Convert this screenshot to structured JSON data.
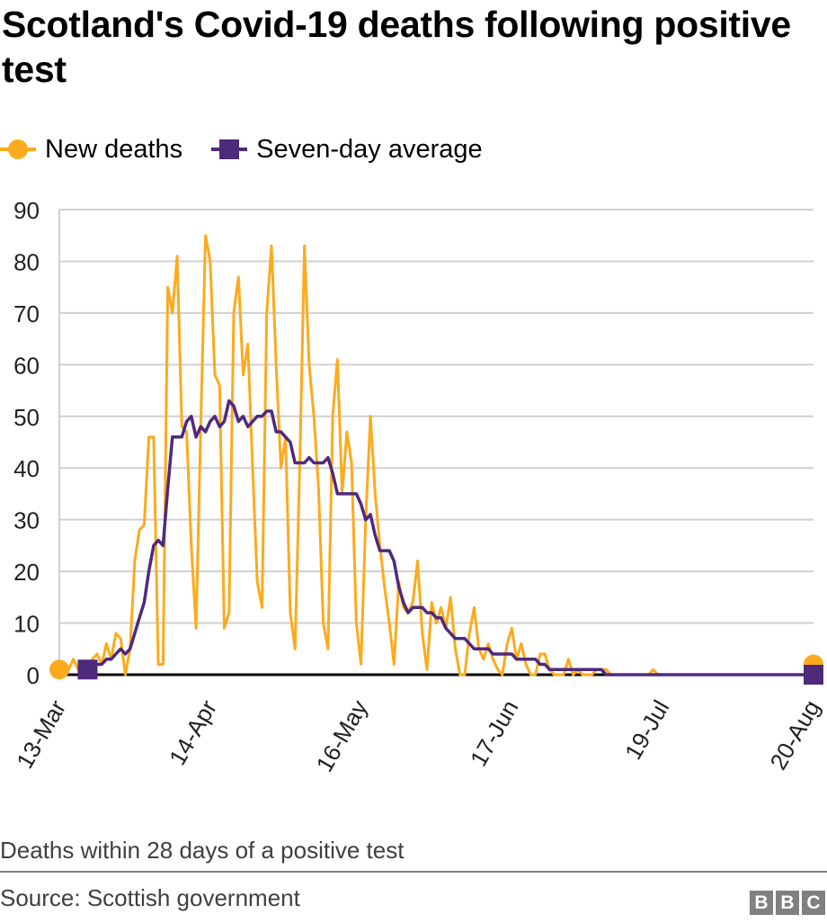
{
  "title": "Scotland's Covid-19 deaths following positive test",
  "subtitle": "Deaths within 28 days of a positive test",
  "source": "Source: Scottish government",
  "logo": [
    "B",
    "B",
    "C"
  ],
  "colors": {
    "new_deaths": "#fdaa1d",
    "average": "#4e2a7c",
    "grid": "#d0d0d0",
    "axis": "#000000"
  },
  "legend": [
    {
      "label": "New deaths",
      "icon": "circle-marker-icon"
    },
    {
      "label": "Seven-day average",
      "icon": "square-marker-icon"
    }
  ],
  "chart_data": {
    "type": "line",
    "title": "Scotland's Covid-19 deaths following positive test",
    "xlabel": "",
    "ylabel": "",
    "x_start": "13-Mar",
    "x_end": "20-Aug",
    "x_tick_labels": [
      "13-Mar",
      "14-Apr",
      "16-May",
      "17-Jun",
      "19-Jul",
      "20-Aug"
    ],
    "x_tick_days": [
      0,
      32,
      64,
      96,
      128,
      160
    ],
    "y_ticks": [
      0,
      10,
      20,
      30,
      40,
      50,
      60,
      70,
      80,
      90
    ],
    "ylim": [
      0,
      90
    ],
    "grid": true,
    "legend_position": "top-left",
    "series": [
      {
        "name": "New deaths",
        "marker": "circle",
        "values": [
          1,
          0,
          1,
          3,
          1,
          2,
          1,
          3,
          4,
          2,
          6,
          3,
          8,
          7,
          0,
          5,
          22,
          28,
          29,
          46,
          46,
          2,
          2,
          75,
          70,
          81,
          48,
          47,
          25,
          9,
          48,
          85,
          80,
          58,
          56,
          9,
          12,
          70,
          77,
          58,
          64,
          40,
          18,
          13,
          70,
          83,
          60,
          40,
          46,
          12,
          5,
          40,
          83,
          60,
          50,
          36,
          10,
          5,
          50,
          61,
          35,
          47,
          41,
          10,
          2,
          30,
          50,
          35,
          25,
          17,
          10,
          2,
          18,
          13,
          12,
          14,
          22,
          8,
          1,
          14,
          10,
          13,
          9,
          15,
          5,
          0,
          0,
          8,
          13,
          5,
          3,
          6,
          3,
          1,
          0,
          6,
          9,
          3,
          6,
          2,
          0,
          0,
          4,
          4,
          1,
          0,
          0,
          0,
          3,
          0,
          1,
          0,
          0,
          0,
          1,
          1,
          1,
          0,
          0,
          0,
          0,
          0,
          0,
          0,
          0,
          0,
          1,
          0,
          0,
          0,
          0,
          0,
          0,
          0,
          0,
          0,
          0,
          0,
          0,
          0,
          0,
          0,
          0,
          0,
          0,
          0,
          0,
          0,
          0,
          0,
          0,
          0,
          0,
          0,
          0,
          0,
          0,
          0,
          0,
          0,
          2
        ]
      },
      {
        "name": "Seven-day average",
        "marker": "square",
        "values": [
          null,
          null,
          null,
          null,
          null,
          null,
          1,
          1,
          2,
          2,
          3,
          3,
          4,
          5,
          4,
          5,
          8,
          11,
          14,
          20,
          25,
          26,
          25,
          36,
          46,
          46,
          46,
          49,
          50,
          46,
          48,
          47,
          49,
          50,
          48,
          49,
          53,
          52,
          49,
          50,
          48,
          49,
          50,
          50,
          51,
          51,
          47,
          47,
          46,
          45,
          41,
          41,
          41,
          42,
          41,
          41,
          41,
          42,
          39,
          35,
          35,
          35,
          35,
          35,
          33,
          30,
          31,
          27,
          24,
          24,
          24,
          22,
          17,
          14,
          12,
          13,
          13,
          13,
          12,
          12,
          11,
          11,
          9,
          8,
          7,
          7,
          7,
          6,
          5,
          5,
          5,
          5,
          4,
          4,
          4,
          4,
          4,
          3,
          3,
          3,
          3,
          3,
          2,
          2,
          1,
          1,
          1,
          1,
          1,
          1,
          1,
          1,
          1,
          1,
          1,
          1,
          0,
          0,
          0,
          0,
          0,
          0,
          0,
          0,
          0,
          0,
          0,
          0,
          0,
          0,
          0,
          0,
          0,
          0,
          0,
          0,
          0,
          0,
          0,
          0,
          0,
          0,
          0,
          0,
          0,
          0,
          0,
          0,
          0,
          0,
          0,
          0,
          0,
          0,
          0,
          0,
          0,
          0,
          0,
          0,
          0
        ]
      }
    ]
  }
}
